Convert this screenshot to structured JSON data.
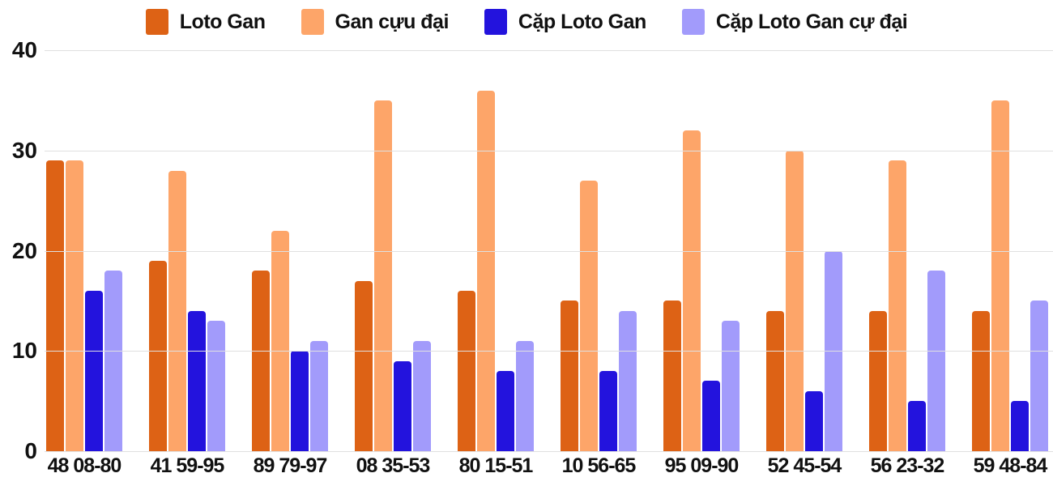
{
  "chart_data": {
    "type": "bar",
    "title": "",
    "xlabel": "",
    "ylabel": "",
    "categories": [
      "48 08-80",
      "41 59-95",
      "89 79-97",
      "08 35-53",
      "80 15-51",
      "10 56-65",
      "95 09-90",
      "52 45-54",
      "56 23-32",
      "59 48-84"
    ],
    "series": [
      {
        "name": "Loto Gan",
        "color": "#dd6215",
        "values": [
          29,
          19,
          18,
          17,
          16,
          15,
          15,
          14,
          14,
          14
        ]
      },
      {
        "name": "Gan cựu đại",
        "color": "#fda569",
        "values": [
          29,
          28,
          22,
          35,
          36,
          27,
          32,
          30,
          29,
          35
        ]
      },
      {
        "name": "Cặp Loto Gan",
        "color": "#2313dd",
        "values": [
          16,
          14,
          10,
          9,
          8,
          8,
          7,
          6,
          5,
          5
        ]
      },
      {
        "name": "Cặp Loto Gan cự đại",
        "color": "#a29bfb",
        "values": [
          18,
          13,
          11,
          11,
          11,
          14,
          13,
          20,
          18,
          15
        ]
      }
    ],
    "yticks": [
      0,
      10,
      20,
      30,
      40
    ],
    "ylim": [
      0,
      40
    ],
    "grid": true,
    "legend_position": "top"
  },
  "colors": {
    "grid": "#e0e0e0",
    "text": "#111111",
    "background": "#ffffff"
  }
}
